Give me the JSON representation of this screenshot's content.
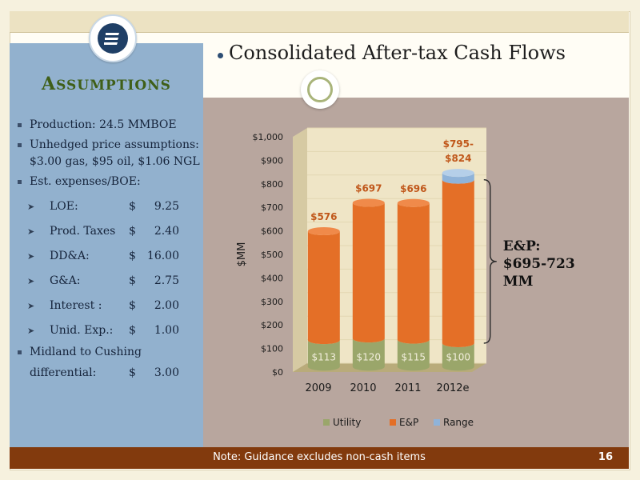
{
  "assumptions": {
    "title_initial": "A",
    "title_rest": "SSUMPTIONS",
    "bullets": [
      "Production: 24.5 MMBOE",
      "Unhedged price assumptions: $3.00 gas, $95 oil, $1.06 NGL",
      "Est. expenses/BOE:"
    ],
    "expenses": [
      {
        "label": "LOE:",
        "currency": "$",
        "value": "9.25"
      },
      {
        "label": "Prod. Taxes",
        "currency": "$",
        "value": "2.40"
      },
      {
        "label": "DD&A:",
        "currency": "$",
        "value": "16.00"
      },
      {
        "label": "G&A:",
        "currency": "$",
        "value": "2.75"
      },
      {
        "label": "Interest :",
        "currency": "$",
        "value": "2.00"
      },
      {
        "label": "Unid. Exp.:",
        "currency": "$",
        "value": "1.00"
      }
    ],
    "differential_line1": "Midland to Cushing",
    "differential_line2": "differential:",
    "differential_currency": "$",
    "differential_value": "3.00"
  },
  "heading": "Consolidated After-tax Cash Flows",
  "footer": {
    "note": "Note:  Guidance excludes non-cash items",
    "page": "16"
  },
  "colors": {
    "utility": "#9aa66a",
    "ep": "#e46f27",
    "range": "#8fb3d9",
    "left_panel": "#92b1ce",
    "right_panel": "#b8a69e",
    "footer": "#823a0d"
  },
  "chart_data": {
    "type": "bar",
    "stacked": true,
    "categories": [
      "2009",
      "2010",
      "2011",
      "2012e"
    ],
    "series": [
      {
        "name": "Utility",
        "values": [
          113,
          120,
          115,
          100
        ]
      },
      {
        "name": "E&P",
        "values": [
          463,
          577,
          581,
          695
        ]
      },
      {
        "name": "Range",
        "values": [
          0,
          0,
          0,
          29
        ]
      }
    ],
    "total_labels": [
      "$576",
      "$697",
      "$696",
      "$795-\n$824"
    ],
    "utility_labels": [
      "$113",
      "$120",
      "$115",
      "$100"
    ],
    "ylabel": "$MM",
    "ylim": [
      0,
      1000
    ],
    "yticks": [
      0,
      100,
      200,
      300,
      400,
      500,
      600,
      700,
      800,
      900,
      1000
    ],
    "ytick_labels": [
      "$0",
      "$100",
      "$200",
      "$300",
      "$400",
      "$500",
      "$600",
      "$700",
      "$800",
      "$900",
      "$1,000"
    ],
    "legend_position": "bottom",
    "annotation": "E&P:\n$695-723\nMM"
  }
}
